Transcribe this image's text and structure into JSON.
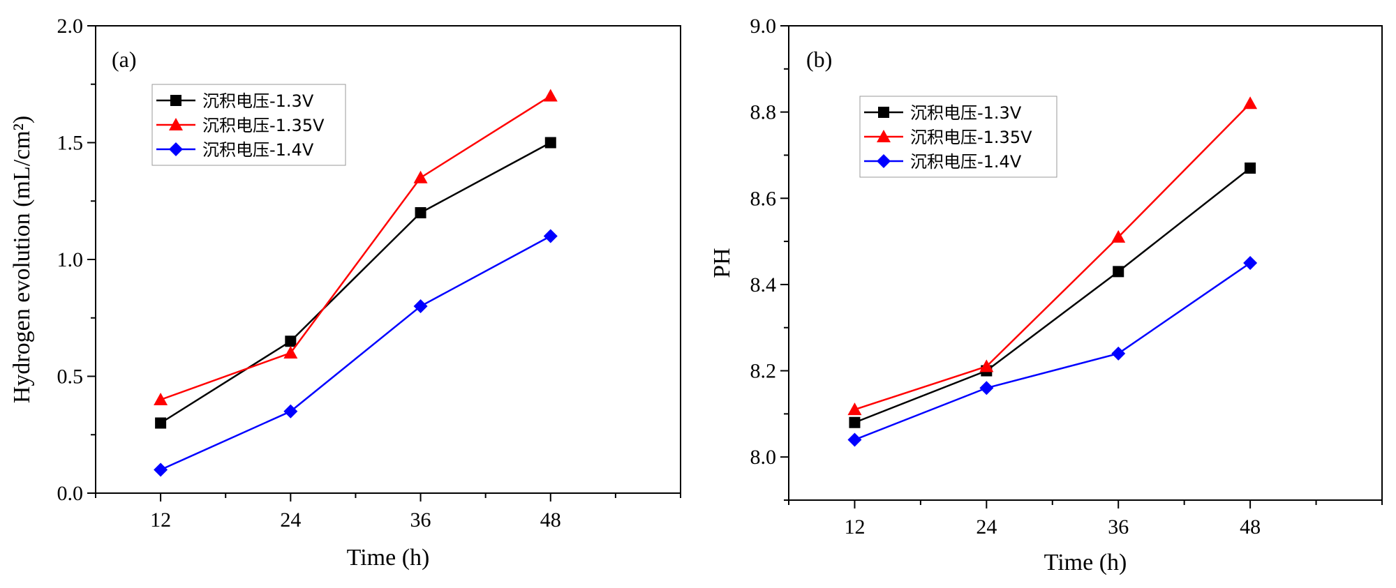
{
  "chart_data": [
    {
      "type": "line",
      "panel_label": "(a)",
      "xlabel": "Time (h)",
      "ylabel": "Hydrogen evolution (mL/cm²)",
      "categories": [
        12,
        24,
        36,
        48
      ],
      "xlim": [
        6,
        60
      ],
      "ylim": [
        0.0,
        2.0
      ],
      "xticks": [
        12,
        24,
        36,
        48
      ],
      "yticks": [
        "0.0",
        "0.5",
        "1.0",
        "1.5",
        "2.0"
      ],
      "legend_position": "top-left",
      "series": [
        {
          "name": "沉积电压-1.3V",
          "color": "#000000",
          "marker": "square",
          "values": [
            0.3,
            0.65,
            1.2,
            1.5
          ]
        },
        {
          "name": "沉积电压-1.35V",
          "color": "#ff0000",
          "marker": "triangle",
          "values": [
            0.4,
            0.6,
            1.35,
            1.7
          ]
        },
        {
          "name": "沉积电压-1.4V",
          "color": "#0000ff",
          "marker": "diamond",
          "values": [
            0.1,
            0.35,
            0.8,
            1.1
          ]
        }
      ]
    },
    {
      "type": "line",
      "panel_label": "(b)",
      "xlabel": "Time (h)",
      "ylabel": "PH",
      "categories": [
        12,
        24,
        36,
        48
      ],
      "xlim": [
        6,
        60
      ],
      "ylim": [
        7.9,
        9.0
      ],
      "xticks": [
        12,
        24,
        36,
        48
      ],
      "yticks": [
        "8.0",
        "8.2",
        "8.4",
        "8.6",
        "8.8",
        "9.0"
      ],
      "legend_position": "top-left",
      "series": [
        {
          "name": "沉积电压-1.3V",
          "color": "#000000",
          "marker": "square",
          "values": [
            8.08,
            8.2,
            8.43,
            8.67
          ]
        },
        {
          "name": "沉积电压-1.35V",
          "color": "#ff0000",
          "marker": "triangle",
          "values": [
            8.11,
            8.21,
            8.51,
            8.82
          ]
        },
        {
          "name": "沉积电压-1.4V",
          "color": "#0000ff",
          "marker": "diamond",
          "values": [
            8.04,
            8.16,
            8.24,
            8.45
          ]
        }
      ]
    }
  ]
}
